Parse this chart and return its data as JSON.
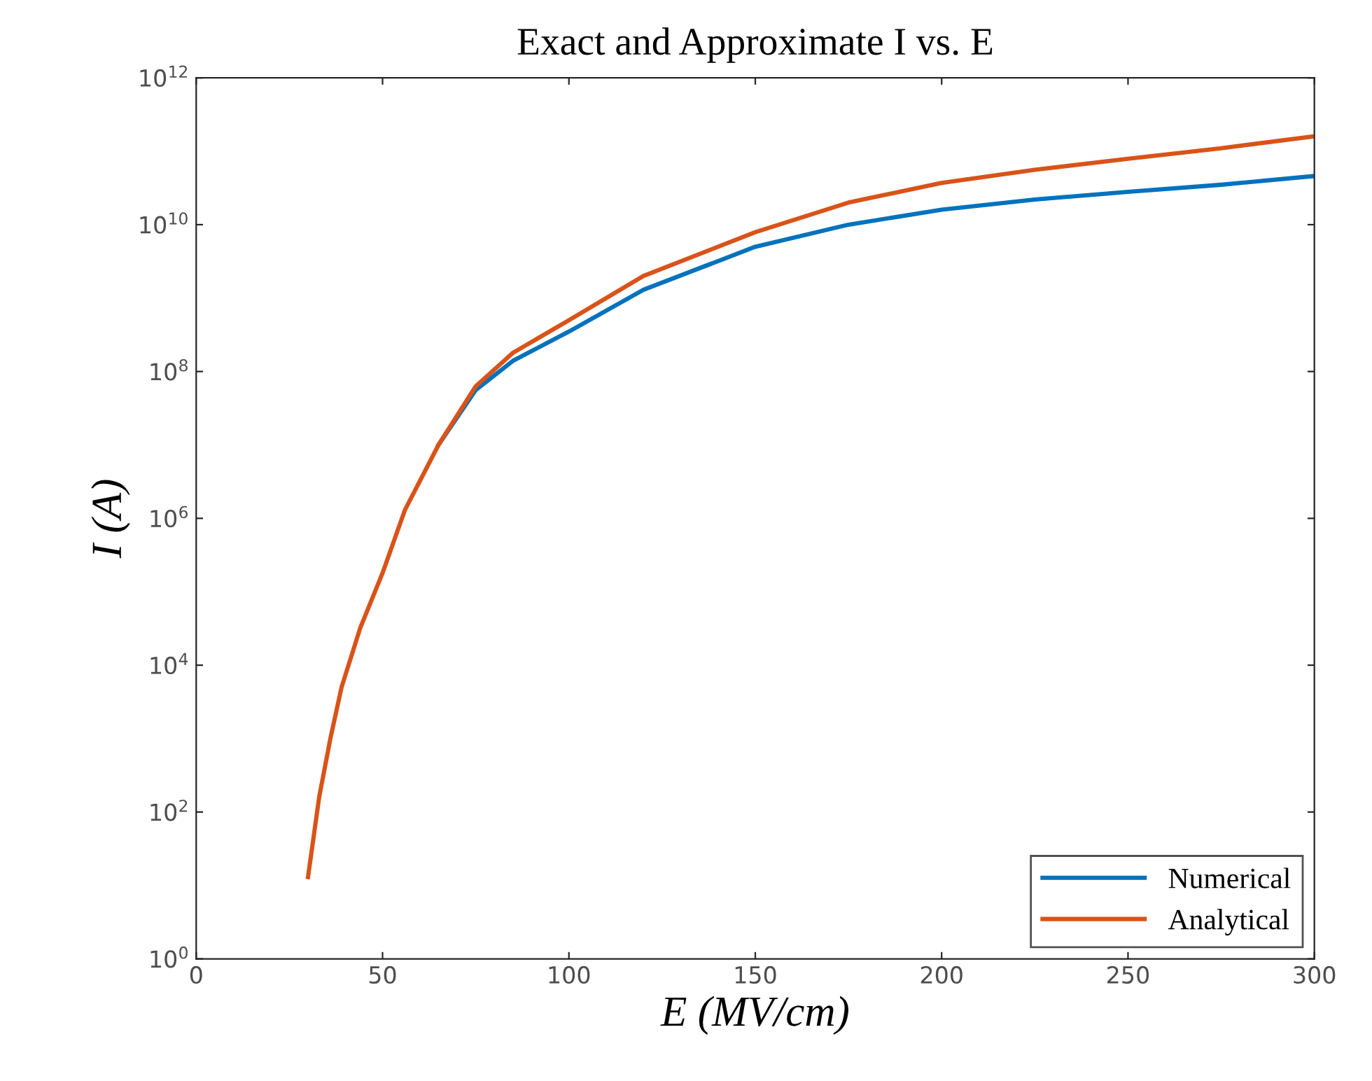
{
  "chart_data": {
    "type": "line",
    "title": "Exact and Approximate I vs. E",
    "xlabel": "E (MV/cm)",
    "ylabel": "I (A)",
    "log": "y",
    "grid": false,
    "legend": "bottom right",
    "marker": "none",
    "line_style": "solid",
    "xlim": [
      0,
      300
    ],
    "xticks": [
      0,
      50,
      100,
      150,
      200,
      250,
      300
    ],
    "ylim": [
      1,
      1000000000000.0
    ],
    "yticks": [
      {
        "value": 1,
        "label": "10$^{0}$"
      },
      {
        "value": 100,
        "label": "10$^{2}$"
      },
      {
        "value": 10000,
        "label": "10$^{4}$"
      },
      {
        "value": 1000000,
        "label": "10$^{6}$"
      },
      {
        "value": 100000000,
        "label": "10$^{8}$"
      },
      {
        "value": 10000000000,
        "label": "10$^{10}$"
      },
      {
        "value": 1000000000000,
        "label": "10$^{12}$"
      }
    ],
    "x": [
      30,
      33,
      36,
      39,
      44,
      50,
      56,
      65,
      75,
      85,
      100,
      120,
      150,
      175,
      200,
      225,
      250,
      275,
      300
    ],
    "series": [
      {
        "name": "Numerical",
        "color": "#0072bd",
        "values": [
          null,
          null,
          null,
          null,
          null,
          null,
          null,
          10000000,
          56000000,
          140000000,
          350000000,
          1300000000,
          5000000000,
          10000000000,
          16000000000,
          22000000000,
          28000000000,
          35000000000,
          46000000000
        ]
      },
      {
        "name": "Analytical",
        "color": "#d95319",
        "values": [
          13,
          160,
          1000,
          5000,
          32000,
          180000,
          1300000,
          10000000,
          63000000,
          180000000,
          500000000,
          2000000000,
          7900000000,
          20000000000,
          37000000000,
          56000000000,
          79000000000,
          110000000000,
          160000000000
        ]
      }
    ]
  }
}
